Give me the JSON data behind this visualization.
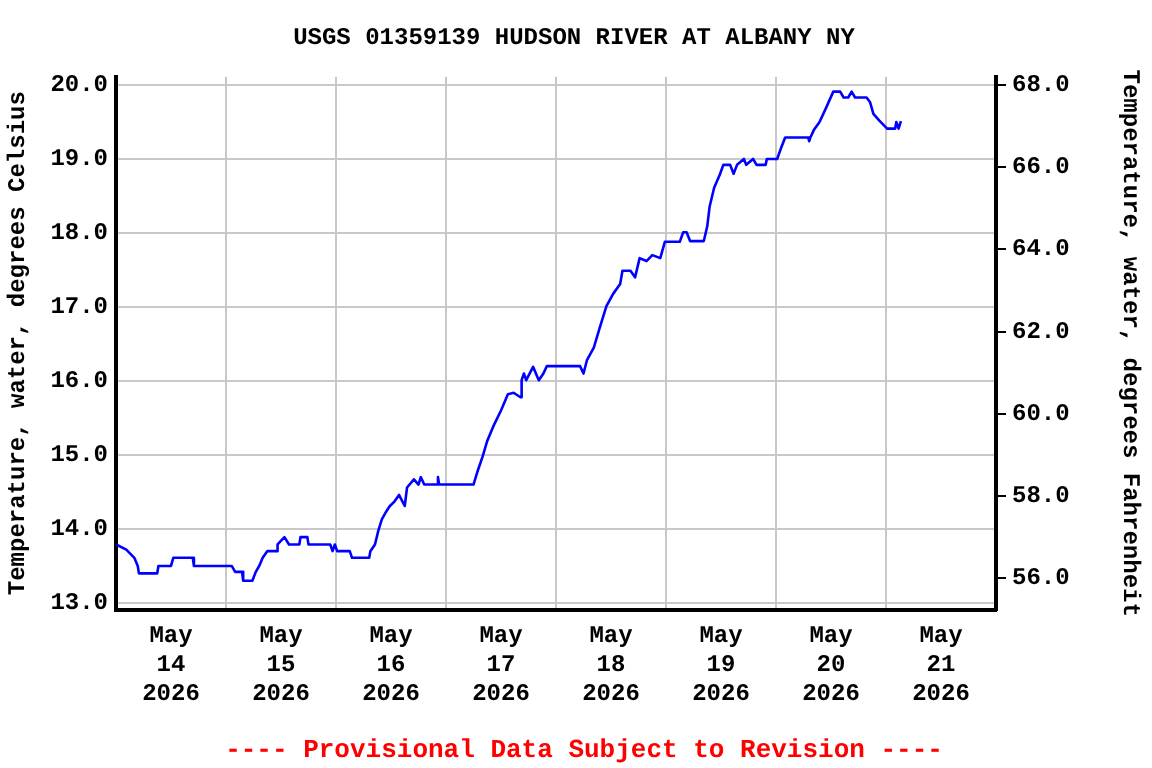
{
  "chart_data": {
    "type": "line",
    "title": "USGS 01359139 HUDSON RIVER AT ALBANY NY",
    "ylabel": "Temperature, water, degrees Celsius",
    "y2label": "Temperature, water, degrees Fahrenheit",
    "annotations": [
      "---- Provisional Data Subject to Revision ----"
    ],
    "xlim": [
      "2026-05-14",
      "2026-05-22"
    ],
    "xticks": [
      {
        "value": "2026-05-14T12:00",
        "label": "May\n14\n2026"
      },
      {
        "value": "2026-05-15",
        "label": null
      },
      {
        "value": "2026-05-15T12:00",
        "label": "May\n15\n2026"
      },
      {
        "value": "2026-05-16",
        "label": null
      },
      {
        "value": "2026-05-16T12:00",
        "label": "May\n16\n2026"
      },
      {
        "value": "2026-05-17",
        "label": null
      },
      {
        "value": "2026-05-17T12:00",
        "label": "May\n17\n2026"
      },
      {
        "value": "2026-05-18",
        "label": null
      },
      {
        "value": "2026-05-18T12:00",
        "label": "May\n18\n2026"
      },
      {
        "value": "2026-05-19",
        "label": null
      },
      {
        "value": "2026-05-19T12:00",
        "label": "May\n19\n2026"
      },
      {
        "value": "2026-05-20",
        "label": null
      },
      {
        "value": "2026-05-20T12:00",
        "label": "May\n20\n2026"
      },
      {
        "value": "2026-05-21",
        "label": null
      },
      {
        "value": "2026-05-21T12:00",
        "label": "May\n21\n2026"
      }
    ],
    "ylim": [
      12.91,
      20.11
    ],
    "yticks": [
      {
        "value": 13,
        "label": "13.0"
      },
      {
        "value": 14,
        "label": "14.0"
      },
      {
        "value": 15,
        "label": "15.0"
      },
      {
        "value": 16,
        "label": "16.0"
      },
      {
        "value": 17,
        "label": "17.0"
      },
      {
        "value": 18,
        "label": "18.0"
      },
      {
        "value": 19,
        "label": "19.0"
      },
      {
        "value": 20,
        "label": "20.0"
      }
    ],
    "y2lim": [
      55.24,
      68.2
    ],
    "y2ticks": [
      {
        "value": 56,
        "label": "56.0"
      },
      {
        "value": 58,
        "label": "58.0"
      },
      {
        "value": 60,
        "label": "60.0"
      },
      {
        "value": 62,
        "label": "62.0"
      },
      {
        "value": 64,
        "label": "64.0"
      },
      {
        "value": 66,
        "label": "66.0"
      },
      {
        "value": 68,
        "label": "68.0"
      }
    ],
    "grid": true,
    "series": [
      {
        "color": "#0000ff",
        "x": [
          "2026-05-14T00:00",
          "2026-05-14T02:15",
          "2026-05-14T04:00",
          "2026-05-14T04:45",
          "2026-05-14T05:00",
          "2026-05-14T09:00",
          "2026-05-14T09:15",
          "2026-05-14T12:00",
          "2026-05-14T12:30",
          "2026-05-14T16:45",
          "2026-05-14T17:00",
          "2026-05-15T01:15",
          "2026-05-15T02:00",
          "2026-05-15T03:30",
          "2026-05-15T03:45",
          "2026-05-15T05:45",
          "2026-05-15T06:30",
          "2026-05-15T07:15",
          "2026-05-15T08:00",
          "2026-05-15T09:00",
          "2026-05-15T11:00",
          "2026-05-15T11:15",
          "2026-05-15T12:45",
          "2026-05-15T13:45",
          "2026-05-15T16:00",
          "2026-05-15T16:15",
          "2026-05-15T17:45",
          "2026-05-15T18:00",
          "2026-05-15T22:45",
          "2026-05-15T23:15",
          "2026-05-15T23:45",
          "2026-05-16T00:15",
          "2026-05-16T03:00",
          "2026-05-16T03:30",
          "2026-05-16T07:15",
          "2026-05-16T07:30",
          "2026-05-16T08:30",
          "2026-05-16T09:15",
          "2026-05-16T10:00",
          "2026-05-16T11:00",
          "2026-05-16T11:45",
          "2026-05-16T12:45",
          "2026-05-16T13:45",
          "2026-05-16T15:00",
          "2026-05-16T15:30",
          "2026-05-16T17:00",
          "2026-05-16T18:00",
          "2026-05-16T18:30",
          "2026-05-16T19:15",
          "2026-05-16T22:00",
          "2026-05-16T22:15",
          "2026-05-16T22:30",
          "2026-05-17T06:00",
          "2026-05-17T07:00",
          "2026-05-17T08:00",
          "2026-05-17T09:00",
          "2026-05-17T10:30",
          "2026-05-17T12:00",
          "2026-05-17T13:30",
          "2026-05-17T14:45",
          "2026-05-17T16:15",
          "2026-05-17T16:30",
          "2026-05-17T17:00",
          "2026-05-17T17:30",
          "2026-05-17T19:00",
          "2026-05-17T20:15",
          "2026-05-17T21:15",
          "2026-05-17T22:00",
          "2026-05-18T05:15",
          "2026-05-18T06:00",
          "2026-05-18T06:45",
          "2026-05-18T08:15",
          "2026-05-18T09:30",
          "2026-05-18T11:00",
          "2026-05-18T12:30",
          "2026-05-18T14:00",
          "2026-05-18T14:30",
          "2026-05-18T16:15",
          "2026-05-18T17:15",
          "2026-05-18T18:15",
          "2026-05-18T19:45",
          "2026-05-18T21:00",
          "2026-05-18T22:45",
          "2026-05-18T23:45",
          "2026-05-19T03:00",
          "2026-05-19T03:45",
          "2026-05-19T04:30",
          "2026-05-19T05:15",
          "2026-05-19T08:15",
          "2026-05-19T09:00",
          "2026-05-19T09:30",
          "2026-05-19T10:30",
          "2026-05-19T11:45",
          "2026-05-19T12:30",
          "2026-05-19T14:00",
          "2026-05-19T14:45",
          "2026-05-19T15:30",
          "2026-05-19T17:00",
          "2026-05-19T17:30",
          "2026-05-19T19:00",
          "2026-05-19T19:45",
          "2026-05-19T21:45",
          "2026-05-19T22:00",
          "2026-05-20T00:15",
          "2026-05-20T01:00",
          "2026-05-20T02:00",
          "2026-05-20T07:00",
          "2026-05-20T07:15",
          "2026-05-20T07:30",
          "2026-05-20T08:15",
          "2026-05-20T09:30",
          "2026-05-20T11:00",
          "2026-05-20T12:30",
          "2026-05-20T14:00",
          "2026-05-20T14:45",
          "2026-05-20T15:45",
          "2026-05-20T16:30",
          "2026-05-20T17:15",
          "2026-05-20T19:45",
          "2026-05-20T20:30",
          "2026-05-20T21:15",
          "2026-05-20T22:30",
          "2026-05-21T00:15",
          "2026-05-21T02:00",
          "2026-05-21T02:15",
          "2026-05-21T02:45",
          "2026-05-21T03:15"
        ],
        "values": [
          13.79,
          13.72,
          13.61,
          13.5,
          13.4,
          13.4,
          13.5,
          13.5,
          13.61,
          13.61,
          13.5,
          13.5,
          13.42,
          13.42,
          13.3,
          13.3,
          13.42,
          13.5,
          13.61,
          13.7,
          13.7,
          13.79,
          13.89,
          13.79,
          13.79,
          13.89,
          13.89,
          13.79,
          13.79,
          13.7,
          13.79,
          13.7,
          13.7,
          13.61,
          13.61,
          13.7,
          13.79,
          13.98,
          14.13,
          14.24,
          14.31,
          14.37,
          14.46,
          14.31,
          14.56,
          14.67,
          14.6,
          14.7,
          14.6,
          14.6,
          14.7,
          14.6,
          14.6,
          14.8,
          14.98,
          15.19,
          15.41,
          15.6,
          15.82,
          15.84,
          15.78,
          16.01,
          16.1,
          16.01,
          16.19,
          16.01,
          16.1,
          16.2,
          16.2,
          16.1,
          16.28,
          16.45,
          16.71,
          17.01,
          17.18,
          17.31,
          17.49,
          17.49,
          17.4,
          17.66,
          17.62,
          17.7,
          17.66,
          17.88,
          17.88,
          18.01,
          18.01,
          17.89,
          17.89,
          18.09,
          18.35,
          18.61,
          18.79,
          18.92,
          18.92,
          18.8,
          18.92,
          19.0,
          18.92,
          19.0,
          18.92,
          18.92,
          19.0,
          19.0,
          19.13,
          19.29,
          19.29,
          19.24,
          19.29,
          19.39,
          19.5,
          19.7,
          19.91,
          19.91,
          19.83,
          19.83,
          19.91,
          19.83,
          19.83,
          19.77,
          19.61,
          19.52,
          19.41,
          19.41,
          19.5,
          19.41,
          19.51
        ]
      }
    ]
  }
}
